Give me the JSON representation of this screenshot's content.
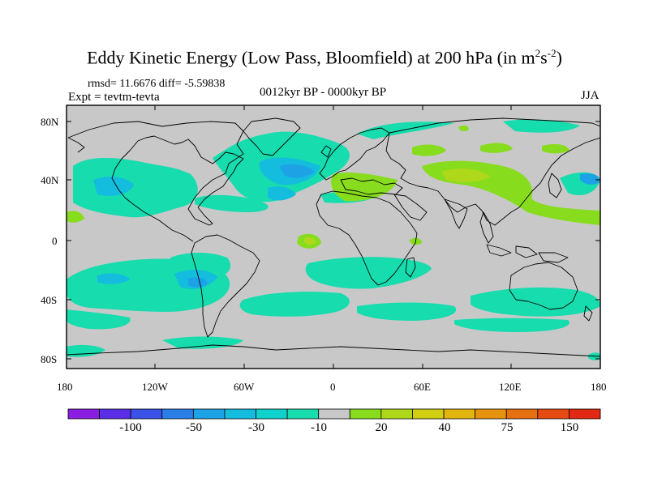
{
  "title_main": "Eddy Kinetic Energy (Low Pass, Bloomfield) at 200 hPa (in m",
  "title_sup1": "2",
  "title_mid": "s",
  "title_sup2": "-2",
  "title_end": ")",
  "stats": "rmsd= 11.6676 diff= -5.59838",
  "expt": "Expt = tevtm-tevta",
  "period": "0012kyr BP - 0000kyr BP",
  "season": "JJA",
  "lat_labels": [
    "80N",
    "40N",
    "0",
    "40S",
    "80S"
  ],
  "lon_labels": [
    "180",
    "120W",
    "60W",
    "0",
    "60E",
    "120E",
    "180"
  ],
  "colorbar": {
    "colors": [
      "#8a1ee0",
      "#5a2ee6",
      "#3a52e8",
      "#2a7ee8",
      "#1ea2e6",
      "#14bcde",
      "#10d2cc",
      "#16dcae",
      "#c8c8c8",
      "#88dc1e",
      "#b0d81a",
      "#d2ce12",
      "#e2b40e",
      "#e6920e",
      "#e67010",
      "#e44a12",
      "#e02812"
    ],
    "labels": [
      "-100",
      "-50",
      "-30",
      "-10",
      "20",
      "40",
      "75",
      "150"
    ]
  },
  "map_colors": {
    "background": "#c8c8c8",
    "neg_light": "#16dcae",
    "neg_mid": "#14bcde",
    "neg_dark": "#1ea2e6",
    "pos_light": "#88dc1e",
    "pos_mid": "#b0d81a"
  }
}
